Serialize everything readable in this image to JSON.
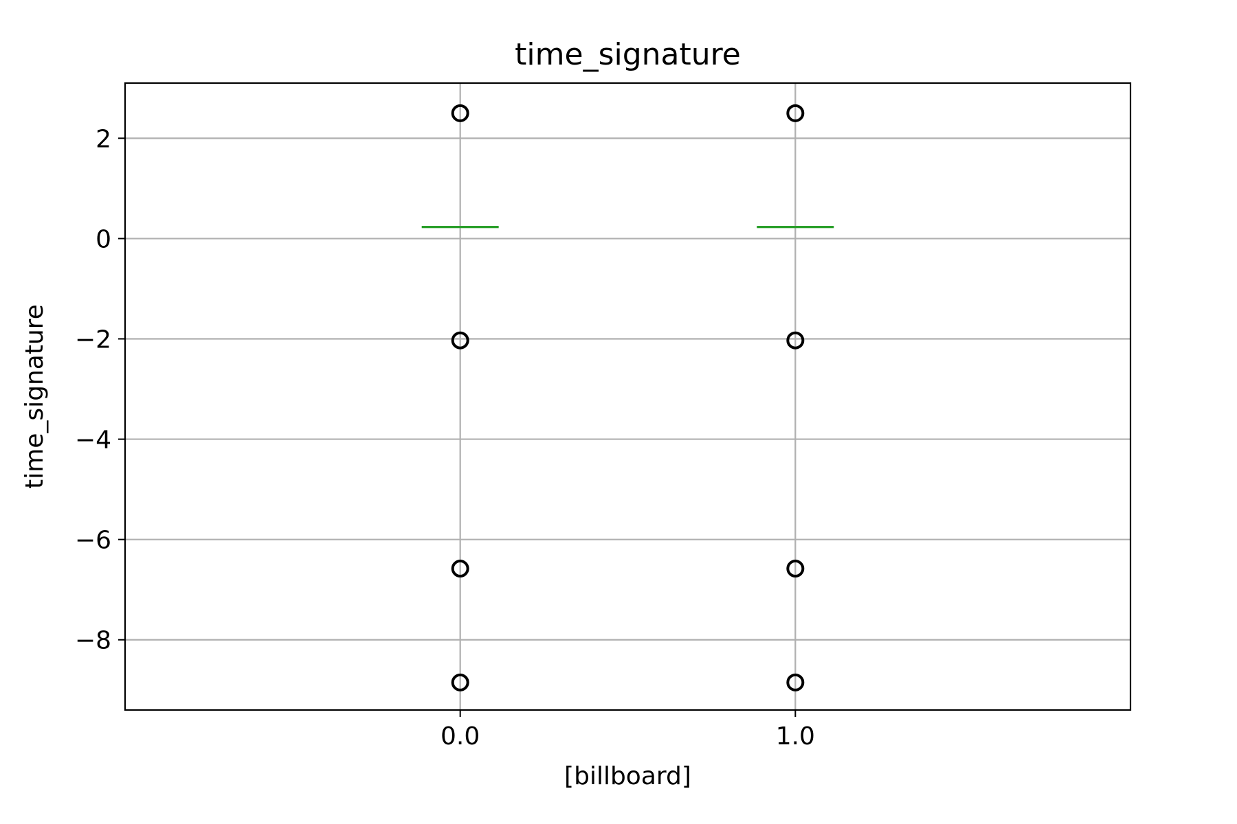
{
  "chart_data": {
    "type": "box",
    "title": "time_signature",
    "xlabel": "[billboard]",
    "ylabel": "time_signature",
    "categories": [
      "0.0",
      "1.0"
    ],
    "ylim": [
      -9.4,
      3.1
    ],
    "yticks": [
      2,
      0,
      -2,
      -4,
      -6,
      -8
    ],
    "ytick_labels": [
      "2",
      "0",
      "−2",
      "−4",
      "−6",
      "−8"
    ],
    "grid": true,
    "boxes": [
      {
        "category": "0.0",
        "median": 0.23,
        "q1": 0.23,
        "q3": 0.23,
        "whisker_low": 0.23,
        "whisker_high": 0.23,
        "outliers": [
          2.5,
          -2.03,
          -6.58,
          -8.85
        ]
      },
      {
        "category": "1.0",
        "median": 0.23,
        "q1": 0.23,
        "q3": 0.23,
        "whisker_low": 0.23,
        "whisker_high": 0.23,
        "outliers": [
          2.5,
          -2.03,
          -6.58,
          -8.85
        ]
      }
    ],
    "colors": {
      "median": "#2ca02c",
      "outlier": "#000000",
      "grid": "#b0b0b0",
      "axes": "#000000"
    }
  }
}
